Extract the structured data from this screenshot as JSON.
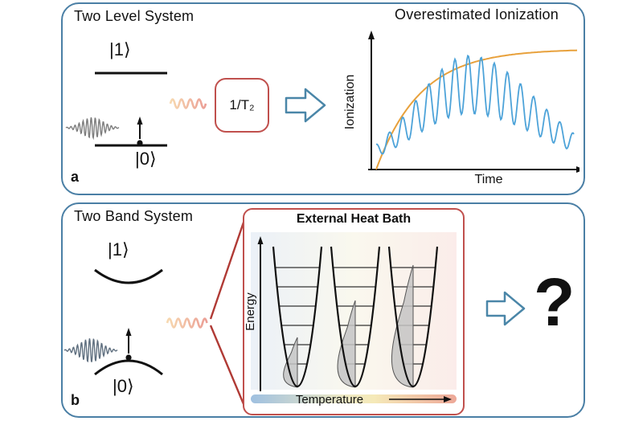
{
  "figure": {
    "panel_a": {
      "corner_label": "a",
      "title": "Two Level System",
      "level1_label": "|1⟩",
      "level0_label": "|0⟩",
      "decay_label": "1/T₂",
      "plot": {
        "title": "Overestimated Ionization",
        "ylabel": "Ionization",
        "xlabel": "Time"
      }
    },
    "panel_b": {
      "corner_label": "b",
      "title": "Two Band System",
      "band1_label": "|1⟩",
      "band0_label": "|0⟩",
      "inset": {
        "title": "External Heat Bath",
        "ylabel": "Energy",
        "xlabel": "Temperature"
      },
      "question_label": "?"
    }
  },
  "colors": {
    "panel_border": "#4a7fa5",
    "accent_red": "#c0504d",
    "flow_arrow_blue": "#4a86a8",
    "ionization_curve_blue": "#4da3d9",
    "saturation_curve_orange": "#e8a13c"
  }
}
